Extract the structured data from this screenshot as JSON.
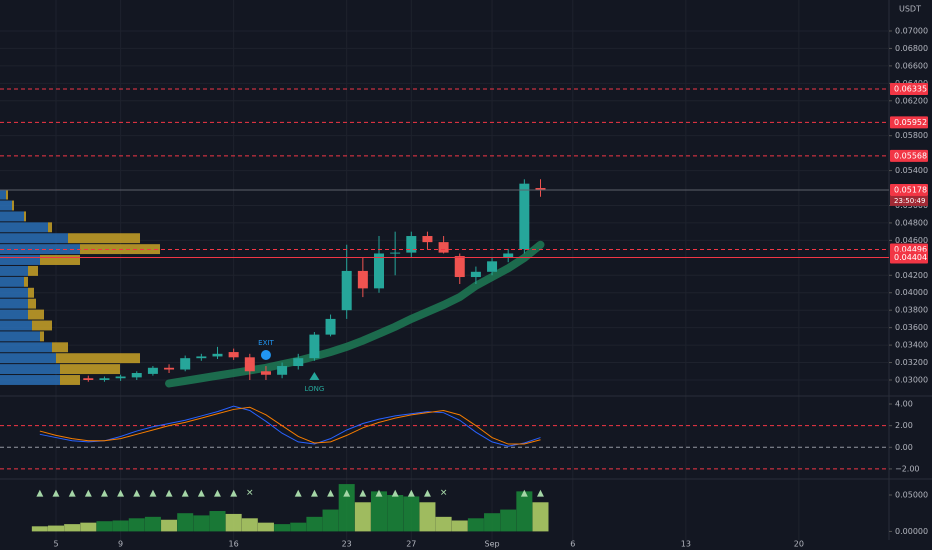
{
  "chart_data": [
    {
      "type": "candlestick",
      "currency": "USDT",
      "countdown": "23:50:49",
      "exit_label": "EXIT",
      "long_label": "LONG",
      "categories": [
        null,
        "5",
        null,
        null,
        null,
        "9",
        null,
        null,
        null,
        null,
        null,
        null,
        "16",
        null,
        null,
        null,
        null,
        null,
        null,
        "23",
        null,
        null,
        null,
        "27",
        null,
        null,
        null,
        null,
        "Sep",
        null,
        null,
        null,
        null,
        "6",
        null,
        null,
        null,
        null,
        null,
        null,
        "13",
        null,
        null,
        null,
        null,
        null,
        null,
        "20",
        null
      ],
      "open": [
        null,
        null,
        null,
        0.0302,
        0.03,
        0.0302,
        0.0303,
        0.0307,
        0.0314,
        0.0312,
        0.0325,
        0.0327,
        0.0332,
        0.0326,
        0.031,
        0.0306,
        0.0316,
        0.0325,
        0.0352,
        0.038,
        0.0425,
        0.0405,
        0.0445,
        0.0446,
        0.0465,
        0.0458,
        0.0442,
        0.0418,
        0.0424,
        0.044,
        0.045,
        0.052,
        null,
        null,
        null,
        null,
        null,
        null,
        null,
        null,
        null,
        null,
        null,
        null,
        null,
        null,
        null,
        null,
        null
      ],
      "high": [
        null,
        null,
        null,
        0.0305,
        0.0304,
        0.0306,
        0.031,
        0.0316,
        0.0318,
        0.0328,
        0.033,
        0.0338,
        0.0336,
        0.033,
        0.0316,
        0.032,
        0.033,
        0.0355,
        0.0375,
        0.0455,
        0.044,
        0.0465,
        0.047,
        0.047,
        0.047,
        0.0465,
        0.0445,
        0.043,
        0.044,
        0.045,
        0.053,
        0.053,
        null,
        null,
        null,
        null,
        null,
        null,
        null,
        null,
        null,
        null,
        null,
        null,
        null,
        null,
        null,
        null,
        null
      ],
      "low": [
        null,
        null,
        null,
        0.0298,
        0.0298,
        0.0299,
        0.03,
        0.0305,
        0.0308,
        0.031,
        0.0322,
        0.0324,
        0.0323,
        0.03,
        0.03,
        0.0302,
        0.0312,
        0.0322,
        0.035,
        0.037,
        0.0395,
        0.04,
        0.042,
        0.044,
        0.045,
        0.0445,
        0.041,
        0.041,
        0.042,
        0.0435,
        0.0445,
        0.051,
        null,
        null,
        null,
        null,
        null,
        null,
        null,
        null,
        null,
        null,
        null,
        null,
        null,
        null,
        null,
        null,
        null
      ],
      "close": [
        null,
        null,
        null,
        0.03,
        0.0302,
        0.0304,
        0.0308,
        0.0314,
        0.0312,
        0.0325,
        0.0327,
        0.033,
        0.0326,
        0.031,
        0.0306,
        0.0316,
        0.0325,
        0.0352,
        0.037,
        0.0425,
        0.0405,
        0.0445,
        0.0446,
        0.0465,
        0.0458,
        0.0446,
        0.0418,
        0.0424,
        0.0436,
        0.0445,
        0.0525,
        0.0518,
        null,
        null,
        null,
        null,
        null,
        null,
        null,
        null,
        null,
        null,
        null,
        null,
        null,
        null,
        null,
        null,
        null
      ],
      "up_color": "#26a69a",
      "down_color": "#ef5350",
      "ma": {
        "color": "#1e7a55",
        "values": [
          null,
          null,
          null,
          null,
          null,
          null,
          null,
          null,
          0.0296,
          0.0299,
          0.0302,
          0.0305,
          0.0308,
          0.0311,
          0.0314,
          0.0318,
          0.0322,
          0.0327,
          0.0332,
          0.0338,
          0.0345,
          0.0353,
          0.0361,
          0.037,
          0.0378,
          0.0386,
          0.0395,
          0.0408,
          0.0418,
          0.0428,
          0.044,
          0.0455,
          null,
          null,
          null,
          null,
          null,
          null,
          null,
          null,
          null,
          null,
          null,
          null,
          null,
          null,
          null,
          null,
          null
        ]
      },
      "profile": {
        "levels": [
          0.03,
          0.03125,
          0.0325,
          0.03375,
          0.035,
          0.03625,
          0.0375,
          0.03875,
          0.04,
          0.04125,
          0.0425,
          0.04375,
          0.045,
          0.04625,
          0.0475,
          0.04875,
          0.05,
          0.05125
        ],
        "xlim": [
          0,
          100
        ],
        "series": [
          {
            "color": "#2a6fb5",
            "values": [
              30,
              30,
              28,
              26,
              20,
              16,
              14,
              14,
              14,
              12,
              14,
              20,
              40,
              34,
              24,
              12,
              6,
              3
            ]
          },
          {
            "color": "#c9a227",
            "values": [
              10,
              30,
              42,
              8,
              2,
              10,
              8,
              4,
              3,
              2,
              5,
              20,
              40,
              36,
              2,
              1,
              1,
              1
            ]
          }
        ]
      },
      "levels": [
        {
          "value": 0.06335,
          "label": "0.06335",
          "style": "dashed",
          "color": "#f23645"
        },
        {
          "value": 0.05952,
          "label": "0.05952",
          "style": "dashed",
          "color": "#f23645"
        },
        {
          "value": 0.05568,
          "label": "0.05568",
          "style": "dashed",
          "color": "#f23645"
        },
        {
          "value": 0.05178,
          "label": "0.05178",
          "style": "solid",
          "color": "#5d606b"
        },
        {
          "value": 0.04496,
          "label": "0.04496",
          "style": "dashed",
          "color": "#f23645"
        },
        {
          "value": 0.04404,
          "label": "0.04404",
          "style": "solid",
          "color": "#f23645"
        }
      ],
      "ylim": [
        0.02828,
        0.07355
      ],
      "yticks": [
        {
          "value": 0.07,
          "label": "0.07000"
        },
        {
          "value": 0.068,
          "label": "0.06800"
        },
        {
          "value": 0.066,
          "label": "0.06600"
        },
        {
          "value": 0.064,
          "label": "0.06400"
        },
        {
          "value": 0.062,
          "label": "0.06200"
        },
        {
          "value": 0.058,
          "label": "0.05800"
        },
        {
          "value": 0.054,
          "label": "0.05400"
        },
        {
          "value": 0.05,
          "label": "0.05000"
        },
        {
          "value": 0.048,
          "label": "0.04800"
        },
        {
          "value": 0.046,
          "label": "0.04600"
        },
        {
          "value": 0.042,
          "label": "0.04200"
        },
        {
          "value": 0.04,
          "label": "0.04000"
        },
        {
          "value": 0.038,
          "label": "0.03800"
        },
        {
          "value": 0.036,
          "label": "0.03600"
        },
        {
          "value": 0.034,
          "label": "0.03400"
        },
        {
          "value": 0.032,
          "label": "0.03200"
        },
        {
          "value": 0.03,
          "label": "0.03000"
        }
      ],
      "grid": true
    },
    {
      "type": "line",
      "series": [
        {
          "color": "#2962ff",
          "values": [
            1.2,
            0.9,
            0.6,
            0.5,
            0.6,
            1.0,
            1.5,
            1.9,
            2.2,
            2.5,
            2.9,
            3.3,
            3.8,
            3.4,
            2.4,
            1.3,
            0.5,
            0.3,
            0.8,
            1.6,
            2.2,
            2.6,
            2.9,
            3.1,
            3.3,
            3.2,
            2.5,
            1.4,
            0.5,
            0.1,
            0.4,
            0.9,
            null,
            null,
            null,
            null,
            null,
            null,
            null,
            null,
            null,
            null,
            null,
            null,
            null,
            null,
            null,
            null,
            null
          ]
        },
        {
          "color": "#f57c00",
          "values": [
            1.5,
            1.1,
            0.8,
            0.6,
            0.6,
            0.8,
            1.2,
            1.6,
            2.0,
            2.3,
            2.7,
            3.1,
            3.5,
            3.7,
            3.0,
            2.0,
            1.0,
            0.4,
            0.5,
            1.1,
            1.8,
            2.3,
            2.7,
            3.0,
            3.2,
            3.4,
            3.0,
            2.0,
            0.9,
            0.3,
            0.3,
            0.7,
            null,
            null,
            null,
            null,
            null,
            null,
            null,
            null,
            null,
            null,
            null,
            null,
            null,
            null,
            null,
            null,
            null
          ]
        }
      ],
      "ylim": [
        -2.84,
        4.65
      ],
      "yticks": [
        {
          "value": 4,
          "label": "4.00"
        },
        {
          "value": 2,
          "label": "2.00"
        },
        {
          "value": 0,
          "label": "0.00"
        },
        {
          "value": -2,
          "label": "−2.00"
        }
      ],
      "hlines": [
        {
          "value": 2,
          "color": "#f23645"
        },
        {
          "value": 0,
          "color": "#9598a1"
        },
        {
          "value": -2,
          "color": "#f23645"
        }
      ]
    },
    {
      "type": "bar",
      "values": [
        0.007,
        0.008,
        0.01,
        0.012,
        0.014,
        0.015,
        0.018,
        0.02,
        0.016,
        0.025,
        0.022,
        0.028,
        0.024,
        0.018,
        0.012,
        0.01,
        0.012,
        0.02,
        0.03,
        0.065,
        0.04,
        0.055,
        0.05,
        0.048,
        0.04,
        0.02,
        0.015,
        0.018,
        0.025,
        0.03,
        0.055,
        0.04,
        null,
        null,
        null,
        null,
        null,
        null,
        null,
        null,
        null,
        null,
        null,
        null,
        null,
        null,
        null,
        null,
        null
      ],
      "up_color": "#1b8a3a",
      "down_color": "#b8d86a",
      "signals": [
        "▲",
        "▲",
        "▲",
        "▲",
        "▲",
        "▲",
        "▲",
        "▲",
        "▲",
        "▲",
        "▲",
        "▲",
        "▲",
        "✕",
        null,
        null,
        "▲",
        "▲",
        "▲",
        "▲",
        "▲",
        "▲",
        "▲",
        "▲",
        "▲",
        "✕",
        null,
        null,
        null,
        null,
        "▲",
        "▲",
        null,
        null,
        null,
        null,
        null,
        null,
        null,
        null,
        null,
        null,
        null,
        null,
        null,
        null,
        null,
        null,
        null
      ],
      "signal_color": "#a5d6a7",
      "ylim": [
        -0.0118,
        0.0706
      ],
      "yticks": [
        {
          "value": 0.05,
          "label": "0.05000"
        },
        {
          "value": 0,
          "label": "0.00000"
        }
      ]
    }
  ]
}
